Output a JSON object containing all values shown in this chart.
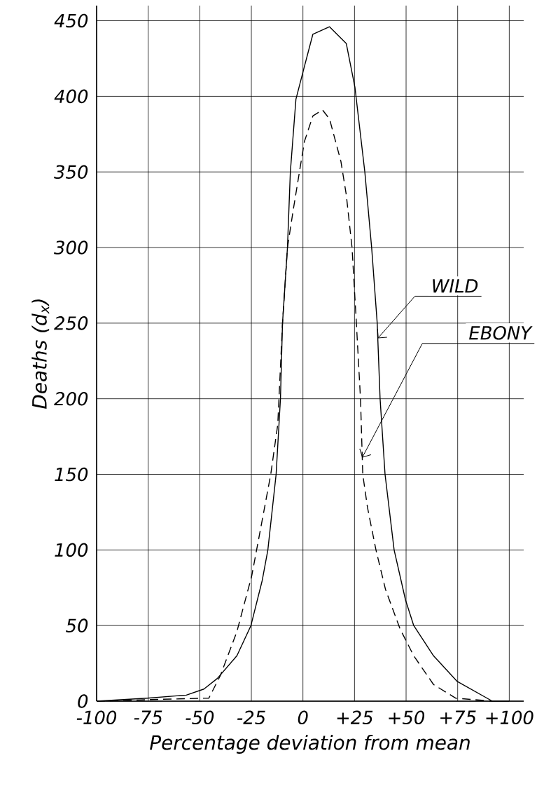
{
  "chart_data": {
    "type": "line",
    "xlabel": "Percentage deviation from mean",
    "ylabel": "Deaths (d$_{x}$)",
    "xlim": [
      -100,
      107
    ],
    "ylim": [
      0,
      460
    ],
    "xticks": [
      -100,
      -75,
      -50,
      -25,
      0,
      {
        "value": 25,
        "label": "+25"
      },
      {
        "value": 50,
        "label": "+50"
      },
      {
        "value": 75,
        "label": "+75"
      },
      {
        "value": 100,
        "label": "+100"
      }
    ],
    "yticks": [
      0,
      50,
      100,
      150,
      200,
      250,
      300,
      350,
      400,
      450
    ],
    "grid": true,
    "marker": "none",
    "series": [
      {
        "color": "#000000",
        "line_style": "solid",
        "x": [
          -100,
          -75.5,
          -56.5,
          -48,
          -41.5,
          -32,
          -25.2,
          -19.7,
          -17,
          -13,
          -10.9,
          -9.9,
          -7.5,
          -6.1,
          -3.4,
          0,
          4.8,
          12.9,
          21,
          25.2,
          30,
          33.3,
          36,
          37.4,
          39.8,
          44.2,
          49.7,
          53.7,
          63.3,
          74.8,
          91.8,
          100
        ],
        "values": [
          0,
          2,
          4,
          8,
          15,
          30,
          50,
          80,
          100,
          150,
          200,
          250,
          300,
          350,
          398,
          416,
          441,
          446,
          435,
          406,
          350,
          300,
          250,
          200,
          150,
          100,
          67,
          50,
          30,
          13,
          0,
          0
        ]
      },
      {
        "color": "#000000",
        "line_style": "dashed",
        "x": [
          -100,
          -75,
          -45.6,
          -40,
          -32,
          -24.8,
          -19.7,
          -15.6,
          -12.2,
          -9.9,
          -7.5,
          -4.8,
          -1.7,
          0.7,
          4.8,
          9.5,
          12.9,
          18.4,
          21,
          23.8,
          25.9,
          27.9,
          29,
          31.3,
          35.4,
          40,
          47,
          53.7,
          63.3,
          74,
          91.8
        ],
        "values": [
          0,
          1,
          2,
          17,
          46,
          83,
          120,
          150,
          183,
          250,
          300,
          324,
          350,
          370,
          387,
          391,
          385,
          357,
          335,
          300,
          250,
          200,
          150,
          128,
          100,
          74,
          48,
          30,
          11,
          2,
          0
        ]
      }
    ],
    "annotations": [
      {
        "text": "WILD",
        "x": 36.3,
        "y": 240
      },
      {
        "text": "EBONY",
        "x": 28.7,
        "y": 161
      }
    ]
  }
}
